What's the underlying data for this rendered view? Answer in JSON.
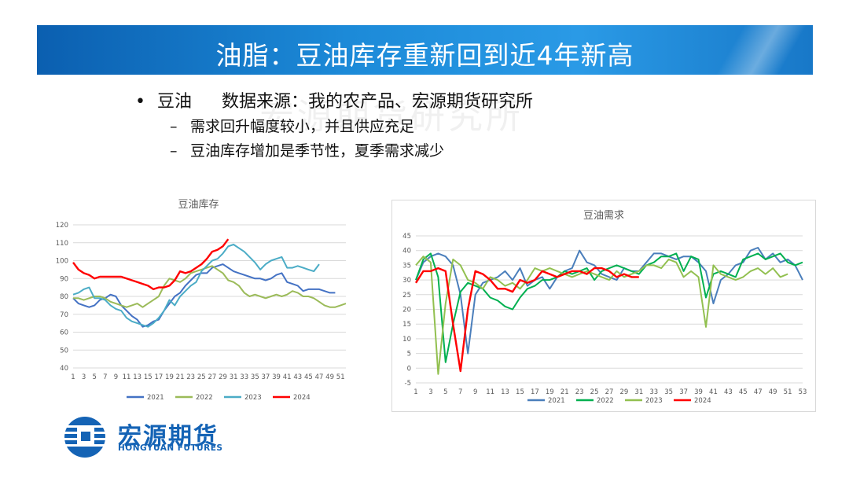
{
  "slide": {
    "title": "油脂：豆油库存重新回到近4年新高",
    "watermark": "宏源期货研究所",
    "bullet_marker": "•",
    "bullet_main": "豆油",
    "bullet_source": "数据来源：我的农产品、宏源期货研究所",
    "sub_marker": "–",
    "sub_bullets": [
      "需求回升幅度较小，并且供应充足",
      "豆油库存增加是季节性，夏季需求减少"
    ]
  },
  "logo": {
    "cn": "宏源期货",
    "en": "HONGYUAN FUTURES"
  },
  "colors": {
    "2021": "#4472c4",
    "2022": "#9bbb59",
    "2023": "#4bacc6",
    "2024": "#ff0000",
    "c2_2021": "#4a7ebb",
    "c2_2022": "#00b050",
    "c2_2023": "#92c050",
    "c2_2024": "#ff0000"
  },
  "chart_data": [
    {
      "type": "line",
      "title": "豆油库存",
      "x_ticks": [
        "1",
        "3",
        "5",
        "7",
        "9",
        "11",
        "13",
        "15",
        "17",
        "19",
        "21",
        "23",
        "25",
        "27",
        "29",
        "31",
        "33",
        "35",
        "37",
        "39",
        "41",
        "43",
        "45",
        "47",
        "49",
        "51"
      ],
      "y_ticks": [
        "40",
        "50",
        "60",
        "70",
        "80",
        "90",
        "100",
        "110",
        "120"
      ],
      "ylim": [
        40,
        120
      ],
      "xlim": [
        1,
        52
      ],
      "legend": "bottom",
      "series": [
        {
          "name": "2021",
          "values": [
            79,
            76,
            75,
            74,
            75,
            78,
            79,
            81,
            80,
            75,
            72,
            69,
            67,
            63,
            64,
            66,
            67,
            72,
            76,
            80,
            82,
            86,
            89,
            92,
            93,
            93,
            96,
            97,
            98,
            96,
            94,
            93,
            92,
            91,
            90,
            90,
            89,
            90,
            92,
            93,
            88,
            87,
            86,
            83,
            84,
            84,
            84,
            83,
            82,
            82
          ]
        },
        {
          "name": "2022",
          "values": [
            79,
            79,
            78,
            79,
            80,
            80,
            79,
            77,
            76,
            75,
            74,
            75,
            76,
            74,
            76,
            78,
            80,
            86,
            90,
            89,
            88,
            90,
            93,
            94,
            95,
            96,
            97,
            95,
            93,
            89,
            88,
            86,
            82,
            80,
            81,
            80,
            79,
            80,
            81,
            80,
            81,
            83,
            82,
            80,
            80,
            79,
            77,
            75,
            74,
            74,
            75,
            76
          ]
        },
        {
          "name": "2023",
          "values": [
            81,
            82,
            84,
            85,
            79,
            79,
            78,
            75,
            73,
            72,
            68,
            66,
            65,
            64,
            63,
            65,
            68,
            72,
            78,
            75,
            80,
            83,
            86,
            88,
            94,
            97,
            100,
            101,
            104,
            108,
            109,
            107,
            105,
            102,
            99,
            95,
            98,
            100,
            101,
            102,
            96,
            96,
            97,
            96,
            95,
            94,
            98
          ]
        },
        {
          "name": "2024",
          "values": [
            99,
            95,
            93,
            92,
            90,
            91,
            91,
            91,
            91,
            91,
            90,
            89,
            88,
            87,
            86,
            84,
            85,
            85,
            86,
            89,
            94,
            93,
            94,
            96,
            98,
            101,
            105,
            106,
            108,
            112
          ]
        }
      ]
    },
    {
      "type": "line",
      "title": "豆油需求",
      "x_ticks": [
        "1",
        "3",
        "5",
        "7",
        "9",
        "11",
        "13",
        "15",
        "17",
        "19",
        "21",
        "23",
        "25",
        "27",
        "29",
        "31",
        "33",
        "35",
        "37",
        "39",
        "41",
        "43",
        "45",
        "47",
        "49",
        "51",
        "53"
      ],
      "y_ticks": [
        "-5",
        "0",
        "5",
        "10",
        "15",
        "20",
        "25",
        "30",
        "35",
        "40",
        "45"
      ],
      "ylim": [
        -5,
        45
      ],
      "xlim": [
        1,
        53
      ],
      "legend": "bottom",
      "series": [
        {
          "name": "2021",
          "values": [
            30,
            36,
            38,
            39,
            38,
            35,
            25,
            5,
            25,
            29,
            30,
            31,
            33,
            30,
            34,
            28,
            30,
            31,
            27,
            31,
            33,
            34,
            40,
            36,
            35,
            32,
            31,
            30,
            34,
            33,
            33,
            36,
            39,
            39,
            38,
            37,
            38,
            38,
            36,
            33,
            22,
            30,
            32,
            35,
            36,
            40,
            41,
            37,
            39,
            36,
            37,
            35,
            30
          ]
        },
        {
          "name": "2022",
          "values": [
            30,
            37,
            39,
            31,
            2,
            15,
            26,
            29,
            28,
            27,
            24,
            23,
            21,
            20,
            24,
            27,
            28,
            30,
            30,
            31,
            33,
            32,
            33,
            34,
            30,
            33,
            34,
            35,
            34,
            33,
            32,
            35,
            36,
            38,
            38,
            39,
            33,
            38,
            37,
            24,
            32,
            33,
            32,
            31,
            37,
            38,
            39,
            37,
            38,
            39,
            36,
            35,
            36
          ]
        },
        {
          "name": "2023",
          "values": [
            35,
            38,
            36,
            -2,
            22,
            37,
            35,
            30,
            29,
            27,
            31,
            30,
            28,
            29,
            27,
            30,
            34,
            33,
            34,
            33,
            32,
            31,
            32,
            33,
            32,
            31,
            30,
            33,
            31,
            32,
            33,
            35,
            35,
            34,
            37,
            36,
            31,
            33,
            31,
            14,
            35,
            32,
            31,
            30,
            31,
            33,
            34,
            32,
            34,
            31,
            32
          ]
        },
        {
          "name": "2024",
          "values": [
            29,
            33,
            33,
            34,
            33,
            15,
            -1,
            20,
            33,
            32,
            30,
            27,
            27,
            26,
            30,
            29,
            30,
            33,
            32,
            31,
            32,
            33,
            33,
            32,
            34,
            34,
            33,
            31,
            32,
            31,
            31
          ]
        }
      ]
    }
  ]
}
